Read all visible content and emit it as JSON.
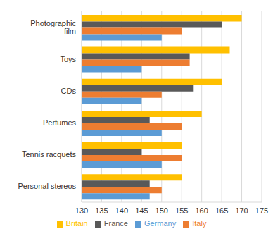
{
  "chart_data": {
    "type": "bar",
    "orientation": "horizontal",
    "categories": [
      "Photographic film",
      "Toys",
      "CDs",
      "Perfumes",
      "Tennis racquets",
      "Personal stereos"
    ],
    "series": [
      {
        "name": "Britain",
        "color": "#ffc000",
        "values": [
          170,
          167,
          165,
          160,
          155,
          155
        ]
      },
      {
        "name": "France",
        "color": "#595959",
        "values": [
          165,
          157,
          158,
          147,
          145,
          147
        ]
      },
      {
        "name": "Italy",
        "color": "#ed7d31",
        "values": [
          155,
          157,
          150,
          155,
          155,
          150
        ]
      },
      {
        "name": "Germany",
        "color": "#5b9bd5",
        "values": [
          150,
          145,
          145,
          150,
          150,
          147
        ]
      }
    ],
    "xlim": [
      130,
      175
    ],
    "xticks": [
      130,
      135,
      140,
      145,
      150,
      155,
      160,
      165,
      170,
      175
    ],
    "grid": true,
    "legend": "bottom"
  }
}
